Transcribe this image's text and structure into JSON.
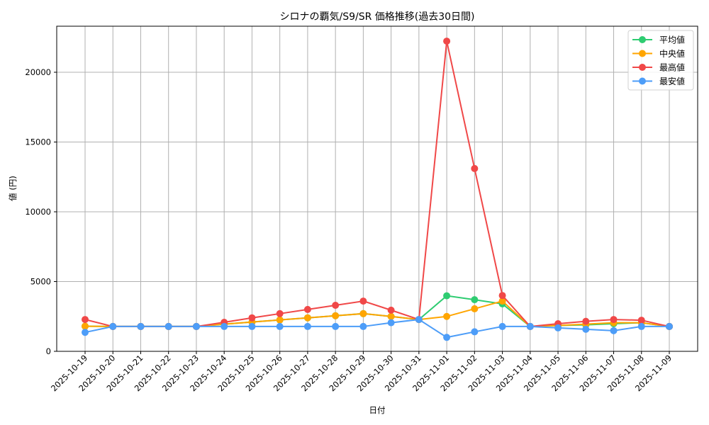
{
  "chart_data": {
    "type": "line",
    "title": "シロナの覇気/S9/SR 価格推移(過去30日間)",
    "xlabel": "日付",
    "ylabel": "値 (円)",
    "ylim": [
      0,
      23300
    ],
    "yticks": [
      0,
      5000,
      10000,
      15000,
      20000
    ],
    "grid": true,
    "legend_position": "upper right",
    "categories": [
      "2025-10-19",
      "2025-10-20",
      "2025-10-21",
      "2025-10-22",
      "2025-10-23",
      "2025-10-24",
      "2025-10-25",
      "2025-10-26",
      "2025-10-27",
      "2025-10-28",
      "2025-10-29",
      "2025-10-30",
      "2025-10-31",
      "2025-11-01",
      "2025-11-02",
      "2025-11-03",
      "2025-11-04",
      "2025-11-05",
      "2025-11-06",
      "2025-11-07",
      "2025-11-08",
      "2025-11-09"
    ],
    "series": [
      {
        "name": "平均値",
        "color": "#2ecc71",
        "values": [
          1800,
          1780,
          1780,
          1780,
          1780,
          1950,
          2100,
          2250,
          2400,
          2550,
          2700,
          2500,
          2280,
          3980,
          3700,
          3400,
          1780,
          1850,
          1900,
          1980,
          2050,
          1780
        ]
      },
      {
        "name": "中央値",
        "color": "#ffa500",
        "values": [
          1800,
          1780,
          1780,
          1780,
          1780,
          1950,
          2100,
          2250,
          2400,
          2550,
          2700,
          2500,
          2280,
          2500,
          3050,
          3600,
          1780,
          1850,
          1950,
          2050,
          2050,
          1780
        ]
      },
      {
        "name": "最高値",
        "color": "#f04848",
        "values": [
          2280,
          1780,
          1780,
          1780,
          1780,
          2080,
          2400,
          2700,
          3000,
          3300,
          3600,
          2950,
          2280,
          22230,
          13100,
          4000,
          1780,
          1980,
          2150,
          2280,
          2230,
          1780
        ]
      },
      {
        "name": "最安値",
        "color": "#4d9df8",
        "values": [
          1360,
          1780,
          1780,
          1780,
          1780,
          1780,
          1780,
          1780,
          1780,
          1780,
          1780,
          2050,
          2280,
          1000,
          1400,
          1780,
          1780,
          1680,
          1580,
          1480,
          1780,
          1780
        ]
      }
    ]
  }
}
